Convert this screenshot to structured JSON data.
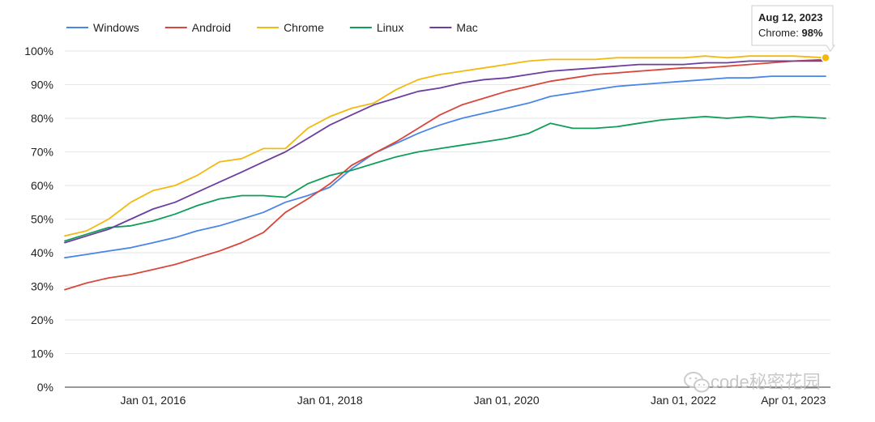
{
  "chart_data": {
    "type": "line",
    "title": "",
    "xlabel": "",
    "ylabel": "",
    "x_axis": {
      "type": "date",
      "range": [
        "2015-01-01",
        "2023-09-01"
      ],
      "ticks": [
        {
          "date": "2016-01-01",
          "label": "Jan 01, 2016"
        },
        {
          "date": "2018-01-01",
          "label": "Jan 01, 2018"
        },
        {
          "date": "2020-01-01",
          "label": "Jan 01, 2020"
        },
        {
          "date": "2022-01-01",
          "label": "Jan 01, 2022"
        },
        {
          "date": "2023-04-01",
          "label": "Apr 01, 2023"
        }
      ]
    },
    "y_axis": {
      "range": [
        0,
        100
      ],
      "ticks": [
        0,
        10,
        20,
        30,
        40,
        50,
        60,
        70,
        80,
        90,
        100
      ],
      "tick_labels": [
        "0%",
        "10%",
        "20%",
        "30%",
        "40%",
        "50%",
        "60%",
        "70%",
        "80%",
        "90%",
        "100%"
      ]
    },
    "grid": {
      "horizontal": true,
      "vertical": false
    },
    "legend_position": "top-left",
    "x": [
      "2015-01-01",
      "2015-04-01",
      "2015-07-01",
      "2015-10-01",
      "2016-01-01",
      "2016-04-01",
      "2016-07-01",
      "2016-10-01",
      "2017-01-01",
      "2017-04-01",
      "2017-07-01",
      "2017-10-01",
      "2018-01-01",
      "2018-04-01",
      "2018-07-01",
      "2018-10-01",
      "2019-01-01",
      "2019-04-01",
      "2019-07-01",
      "2019-10-01",
      "2020-01-01",
      "2020-04-01",
      "2020-07-01",
      "2020-10-01",
      "2021-01-01",
      "2021-04-01",
      "2021-07-01",
      "2021-10-01",
      "2022-01-01",
      "2022-04-01",
      "2022-07-01",
      "2022-10-01",
      "2023-01-01",
      "2023-04-01",
      "2023-08-12"
    ],
    "series": [
      {
        "name": "Windows",
        "color": "#4a86e8",
        "values": [
          38.5,
          39.5,
          40.5,
          41.5,
          43,
          44.5,
          46.5,
          48,
          50,
          52,
          55,
          57,
          59.5,
          65,
          69.5,
          72.5,
          75.5,
          78,
          80,
          81.5,
          83,
          84.5,
          86.5,
          87.5,
          88.5,
          89.5,
          90,
          90.5,
          91,
          91.5,
          92,
          92,
          92.5,
          92.5,
          92.5
        ]
      },
      {
        "name": "Android",
        "color": "#d9473b",
        "values": [
          29,
          31,
          32.5,
          33.5,
          35,
          36.5,
          38.5,
          40.5,
          43,
          46,
          52,
          56,
          60.5,
          66,
          69.5,
          73,
          77,
          81,
          84,
          86,
          88,
          89.5,
          91,
          92,
          93,
          93.5,
          94,
          94.5,
          95,
          95,
          95.5,
          96,
          96.5,
          97,
          97.5
        ]
      },
      {
        "name": "Chrome",
        "color": "#f2b90f",
        "values": [
          45,
          46.5,
          50,
          55,
          58.5,
          60,
          63,
          67,
          68,
          71,
          71,
          77,
          80.5,
          83,
          84.5,
          88.5,
          91.5,
          93,
          94,
          95,
          96,
          97,
          97.5,
          97.5,
          97.5,
          98,
          98,
          98,
          98,
          98.5,
          98,
          98.5,
          98.5,
          98.5,
          98
        ]
      },
      {
        "name": "Linux",
        "color": "#0f9d58",
        "values": [
          43.5,
          45.5,
          47.5,
          48,
          49.5,
          51.5,
          54,
          56,
          57,
          57,
          56.5,
          60.5,
          63,
          64.5,
          66.5,
          68.5,
          70,
          71,
          72,
          73,
          74,
          75.5,
          78.5,
          77,
          77,
          77.5,
          78.5,
          79.5,
          80,
          80.5,
          80,
          80.5,
          80,
          80.5,
          80
        ]
      },
      {
        "name": "Mac",
        "color": "#6b3fa0",
        "values": [
          43,
          45,
          47,
          50,
          53,
          55,
          58,
          61,
          64,
          67,
          70,
          74,
          78,
          81,
          84,
          86,
          88,
          89,
          90.5,
          91.5,
          92,
          93,
          94,
          94.5,
          95,
          95.5,
          96,
          96,
          96,
          96.5,
          96.5,
          97,
          97,
          97,
          97
        ]
      }
    ],
    "tooltip": {
      "date_label": "Aug 12, 2023",
      "series_name": "Chrome:",
      "value_label": "98%",
      "series_index": 2,
      "x": "2023-08-12",
      "y": 98
    }
  },
  "watermark": {
    "icon": "wechat-icon",
    "text": "code秘密花园"
  }
}
